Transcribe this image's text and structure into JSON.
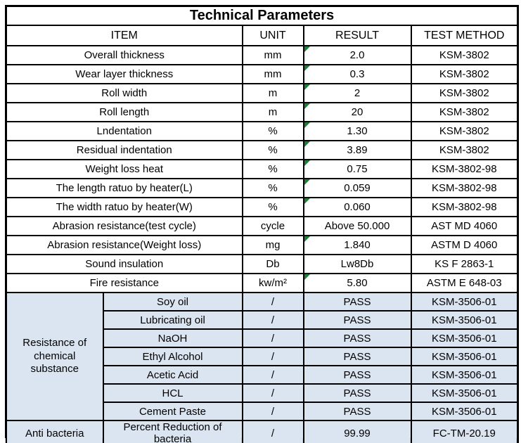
{
  "title": "Technical Parameters",
  "colors": {
    "section_bg": "#dbe5f1",
    "triangle_green": "#1e7e34",
    "border": "#000000"
  },
  "header": {
    "cols": [
      "ITEM",
      "UNIT",
      "RESULT",
      "TEST METHOD"
    ]
  },
  "rows": [
    {
      "item": "Overall thickness",
      "unit": "mm",
      "result": "2.0",
      "method": "KSM-3802",
      "flag": true
    },
    {
      "item": "Wear layer thickness",
      "unit": "mm",
      "result": "0.3",
      "method": "KSM-3802",
      "flag": true
    },
    {
      "item": "Roll width",
      "unit": "m",
      "result": "2",
      "method": "KSM-3802",
      "flag": true
    },
    {
      "item": "Roll length",
      "unit": "m",
      "result": "20",
      "method": "KSM-3802",
      "flag": true
    },
    {
      "item": "Lndentation",
      "unit": "%",
      "result": "1.30",
      "method": "KSM-3802",
      "flag": true
    },
    {
      "item": "Residual indentation",
      "unit": "%",
      "result": "3.89",
      "method": "KSM-3802",
      "flag": true
    },
    {
      "item": "Weight loss heat",
      "unit": "%",
      "result": "0.75",
      "method": "KSM-3802-98",
      "flag": true
    },
    {
      "item": "The length ratuo by heater(L)",
      "unit": "%",
      "result": "0.059",
      "method": "KSM-3802-98",
      "flag": true
    },
    {
      "item": "The width ratuo by heater(W)",
      "unit": "%",
      "result": "0.060",
      "method": "KSM-3802-98",
      "flag": true
    },
    {
      "item": "Abrasion resistance(test cycle)",
      "unit": "cycle",
      "result": "Above 50.000",
      "method": "AST MD 4060",
      "flag": false
    },
    {
      "item": "Abrasion resistance(Weight loss)",
      "unit": "mg",
      "result": "1.840",
      "method": "ASTM D 4060",
      "flag": true
    },
    {
      "item": "Sound insulation",
      "unit": "Db",
      "result": "Lw8Db",
      "method": "KS F 2863-1",
      "flag": false
    },
    {
      "item": "Fire resistance",
      "unit": "kw/m²",
      "result": "5.80",
      "method": "ASTM E 648-03",
      "flag": true
    }
  ],
  "chemical_section": {
    "group_label": "Resistance of chemical substance",
    "rows": [
      {
        "item": "Soy oil",
        "unit": "/",
        "result": "PASS",
        "method": "KSM-3506-01",
        "flag": false
      },
      {
        "item": "Lubricating oil",
        "unit": "/",
        "result": "PASS",
        "method": "KSM-3506-01",
        "flag": false
      },
      {
        "item": "NaOH",
        "unit": "/",
        "result": "PASS",
        "method": "KSM-3506-01",
        "flag": false
      },
      {
        "item": "Ethyl Alcohol",
        "unit": "/",
        "result": "PASS",
        "method": "KSM-3506-01",
        "flag": false
      },
      {
        "item": "Acetic Acid",
        "unit": "/",
        "result": "PASS",
        "method": "KSM-3506-01",
        "flag": false
      },
      {
        "item": "HCL",
        "unit": "/",
        "result": "PASS",
        "method": "KSM-3506-01",
        "flag": false
      },
      {
        "item": "Cement Paste",
        "unit": "/",
        "result": "PASS",
        "method": "KSM-3506-01",
        "flag": false
      }
    ]
  },
  "anti_bacteria_row": {
    "group_label": "Anti bacteria",
    "item": "Percent Reduction of bacteria",
    "unit": "/",
    "result": "99.99",
    "method": "FC-TM-20.19",
    "flag": false
  }
}
